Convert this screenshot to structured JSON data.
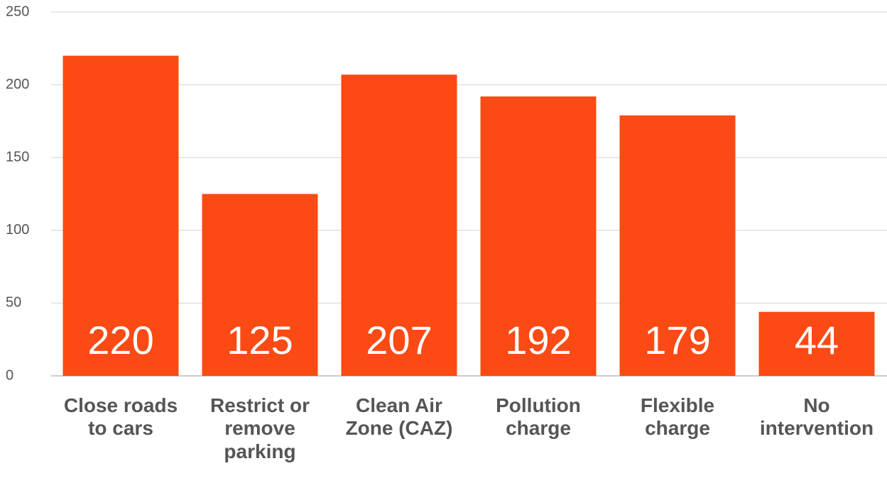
{
  "chart_data": {
    "type": "bar",
    "categories": [
      "Close roads to cars",
      "Restrict or remove parking",
      "Clean Air Zone (CAZ)",
      "Pollution charge",
      "Flexible charge",
      "No intervention"
    ],
    "values": [
      220,
      125,
      207,
      192,
      179,
      44
    ],
    "color": "#fb4a13",
    "ylim": [
      0,
      250
    ],
    "yticks": [
      0,
      50,
      100,
      150,
      200,
      250
    ],
    "grid": true
  }
}
